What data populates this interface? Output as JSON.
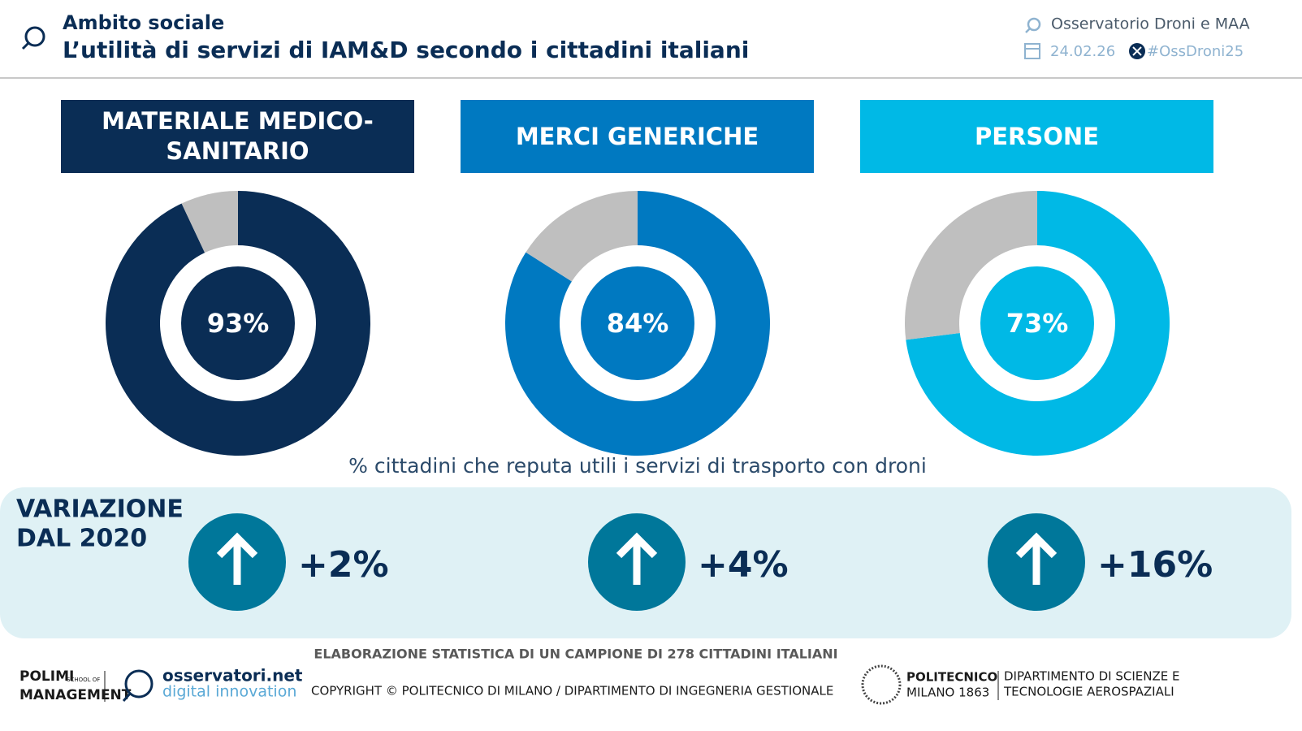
{
  "header": {
    "section": "Ambito sociale",
    "title": "L’utilità di servizi di IAM&D secondo i cittadini italiani",
    "observatory": "Osservatorio Droni e MAA",
    "date": "24.02.26",
    "hashtag": "#OssDroni25"
  },
  "chart_data": [
    {
      "type": "donut",
      "title": "MATERIALE MEDICO-SANITARIO",
      "values": [
        93,
        7
      ],
      "value_labels": [
        "93%",
        null
      ],
      "colors": [
        "#0a2d55",
        "#bfbfbf"
      ],
      "change": {
        "value": 2,
        "label": "+2%"
      }
    },
    {
      "type": "donut",
      "title": "MERCI GENERICHE",
      "values": [
        84,
        16
      ],
      "value_labels": [
        "84%",
        null
      ],
      "colors": [
        "#0079c1",
        "#bfbfbf"
      ],
      "change": {
        "value": 4,
        "label": "+4%"
      }
    },
    {
      "type": "donut",
      "title": "PERSONE",
      "values": [
        73,
        27
      ],
      "value_labels": [
        "73%",
        null
      ],
      "colors": [
        "#00b9e6",
        "#bfbfbf"
      ],
      "change": {
        "value": 16,
        "label": "+16%"
      }
    }
  ],
  "caption": "% cittadini che reputa utili i servizi di trasporto con droni",
  "variation_title": [
    "VARIAZIONE",
    "DAL 2020"
  ],
  "footer": {
    "note": "ELABORAZIONE STATISTICA DI UN CAMPIONE DI 278 CITTADINI ITALIANI",
    "copyright": "COPYRIGHT © POLITECNICO DI MILANO / DIPARTIMENTO DI INGEGNERIA GESTIONALE",
    "polimi": [
      "POLIMI",
      "SCHOOL OF",
      "MANAGEMENT"
    ],
    "osservatori": [
      "osservatori.net",
      "digital innovation"
    ],
    "politecnico": [
      "POLITECNICO",
      "MILANO 1863"
    ],
    "department": [
      "DIPARTIMENTO DI SCIENZE E",
      "TECNOLOGIE AEROSPAZIALI"
    ]
  }
}
